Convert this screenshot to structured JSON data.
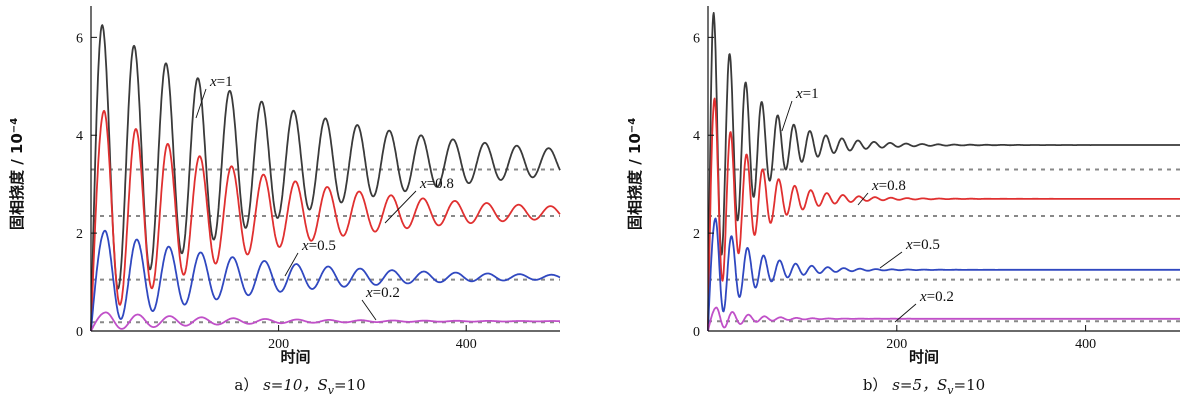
{
  "chart_data": [
    {
      "type": "line",
      "caption": {
        "prefix": "a）",
        "s_label": "s=10，S",
        "sub": "v",
        "sv_value": "=10"
      },
      "xlabel": "时间",
      "ylabel": "固相挠度 / 10",
      "ylabel_exp": "−4",
      "xlim": [
        0,
        500
      ],
      "ylim": [
        0,
        6.6
      ],
      "xticks": [
        200,
        400
      ],
      "yticks": [
        0,
        2,
        4,
        6
      ],
      "params": {
        "s": 10,
        "S_v": 10
      },
      "series": [
        {
          "name": "x=1",
          "label_var": "x",
          "label_val": "=1",
          "color": "#3a3a3a",
          "steady": 3.45,
          "peak": 6.25,
          "period": 34,
          "decay": 0.0048,
          "t0": 12,
          "reference": 3.3
        },
        {
          "name": "x=0.8",
          "label_var": "x",
          "label_val": "=0.8",
          "color": "#e03030",
          "steady": 2.42,
          "peak": 4.5,
          "period": 34,
          "decay": 0.0058,
          "t0": 14,
          "reference": 2.35
        },
        {
          "name": "x=0.5",
          "label_var": "x",
          "label_val": "=0.5",
          "color": "#3048c0",
          "steady": 1.1,
          "peak": 2.05,
          "period": 34,
          "decay": 0.0062,
          "t0": 15,
          "reference": 1.05
        },
        {
          "name": "x=0.2",
          "label_var": "x",
          "label_val": "=0.2",
          "color": "#c050c8",
          "steady": 0.2,
          "peak": 0.38,
          "period": 34,
          "decay": 0.008,
          "t0": 16,
          "reference": 0.18
        }
      ]
    },
    {
      "type": "line",
      "caption": {
        "prefix": "b）",
        "s_label": "s=5，S",
        "sub": "v",
        "sv_value": "=10"
      },
      "xlabel": "时间",
      "ylabel": "固相挠度 / 10",
      "ylabel_exp": "−4",
      "xlim": [
        0,
        500
      ],
      "ylim": [
        0,
        6.6
      ],
      "xticks": [
        200,
        400
      ],
      "yticks": [
        0,
        2,
        4,
        6
      ],
      "params": {
        "s": 5,
        "S_v": 10
      },
      "series": [
        {
          "name": "x=1",
          "label_var": "x",
          "label_val": "=1",
          "color": "#3a3a3a",
          "steady": 3.8,
          "peak": 6.5,
          "period": 17,
          "decay": 0.022,
          "t0": 6,
          "reference": 3.3
        },
        {
          "name": "x=0.8",
          "label_var": "x",
          "label_val": "=0.8",
          "color": "#e03030",
          "steady": 2.7,
          "peak": 4.75,
          "period": 17,
          "decay": 0.024,
          "t0": 7,
          "reference": 2.35
        },
        {
          "name": "x=0.5",
          "label_var": "x",
          "label_val": "=0.5",
          "color": "#3048c0",
          "steady": 1.25,
          "peak": 2.3,
          "period": 17,
          "decay": 0.025,
          "t0": 8,
          "reference": 1.05
        },
        {
          "name": "x=0.2",
          "label_var": "x",
          "label_val": "=0.2",
          "color": "#c050c8",
          "steady": 0.25,
          "peak": 0.48,
          "period": 17,
          "decay": 0.03,
          "t0": 9,
          "reference": 0.2
        }
      ]
    }
  ]
}
